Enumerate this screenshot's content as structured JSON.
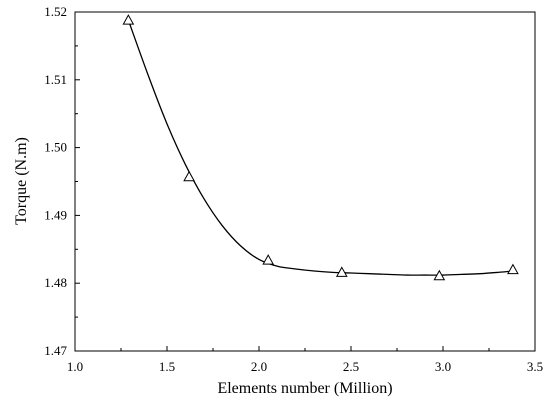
{
  "chart_data": {
    "type": "scatter",
    "title": "",
    "xlabel": "Elements number (Million)",
    "ylabel": "Torque (N.m)",
    "xlim": [
      1.0,
      3.5
    ],
    "ylim": [
      1.47,
      1.52
    ],
    "xticks": [
      "1.0",
      "1.5",
      "2.0",
      "2.5",
      "3.0",
      "3.5"
    ],
    "yticks": [
      "1.47",
      "1.48",
      "1.49",
      "1.50",
      "1.51",
      "1.52"
    ],
    "grid": false,
    "marker": "open-triangle",
    "series": [
      {
        "x": [
          1.29,
          1.62,
          2.05,
          2.45,
          2.98,
          3.38
        ],
        "y": [
          1.5188,
          1.4957,
          1.4834,
          1.4816,
          1.4811,
          1.482
        ]
      }
    ],
    "fit_curve": {
      "x": [
        1.29,
        1.4,
        1.5,
        1.6,
        1.7,
        1.8,
        1.9,
        2.0,
        2.1,
        2.2,
        2.3,
        2.4,
        2.5,
        2.6,
        2.7,
        2.8,
        2.9,
        3.0,
        3.1,
        3.2,
        3.3,
        3.38
      ],
      "y": [
        1.5188,
        1.5105,
        1.5035,
        1.4975,
        1.4925,
        1.4885,
        1.4855,
        1.4835,
        1.4825,
        1.4821,
        1.4818,
        1.4816,
        1.4815,
        1.4814,
        1.4813,
        1.4812,
        1.4812,
        1.4812,
        1.4813,
        1.4814,
        1.4816,
        1.4818
      ]
    }
  }
}
